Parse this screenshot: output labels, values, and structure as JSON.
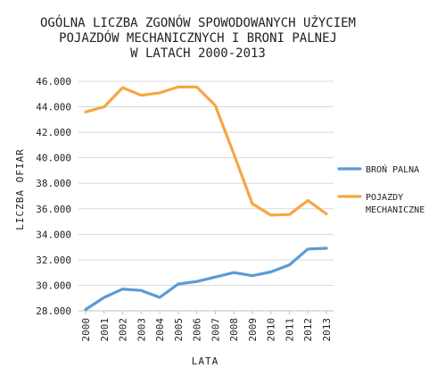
{
  "chart_data": {
    "type": "line",
    "title_lines": [
      "OGÓLNA LICZBA ZGONÓW SPOWODOWANYCH UŻYCIEM",
      "POJAZDÓW MECHANICZNYCH I BRONI PALNEJ",
      "W LATACH 2000-2013"
    ],
    "xlabel": "LATA",
    "ylabel": "LICZBA OFIAR",
    "x": [
      "2000",
      "2001",
      "2002",
      "2003",
      "2004",
      "2005",
      "2006",
      "2007",
      "2008",
      "2009",
      "2010",
      "2011",
      "2012",
      "2013"
    ],
    "ylim": [
      28000,
      46000
    ],
    "y_ticks": [
      28000,
      30000,
      32000,
      34000,
      36000,
      38000,
      40000,
      42000,
      44000,
      46000
    ],
    "y_tick_labels": [
      "28.000",
      "30.000",
      "32.000",
      "34.000",
      "36.000",
      "38.000",
      "40.000",
      "42.000",
      "44.000",
      "46.000"
    ],
    "grid": true,
    "legend_position": "right",
    "series": [
      {
        "name": "BROŃ PALNA",
        "legend_lines": [
          "BROŃ PALNA"
        ],
        "color": "#5b9bd5",
        "values": [
          28100,
          29050,
          29700,
          29600,
          29050,
          30100,
          30300,
          30650,
          31000,
          30750,
          31050,
          31600,
          32850,
          32900
        ]
      },
      {
        "name": "POJAZDY MECHANICZNE",
        "legend_lines": [
          "POJAZDY",
          "MECHANICZNE"
        ],
        "color": "#f5a742",
        "values": [
          43600,
          44000,
          45500,
          44900,
          45100,
          45550,
          45550,
          44100,
          40300,
          36400,
          35500,
          35550,
          36650,
          35600
        ]
      }
    ]
  }
}
